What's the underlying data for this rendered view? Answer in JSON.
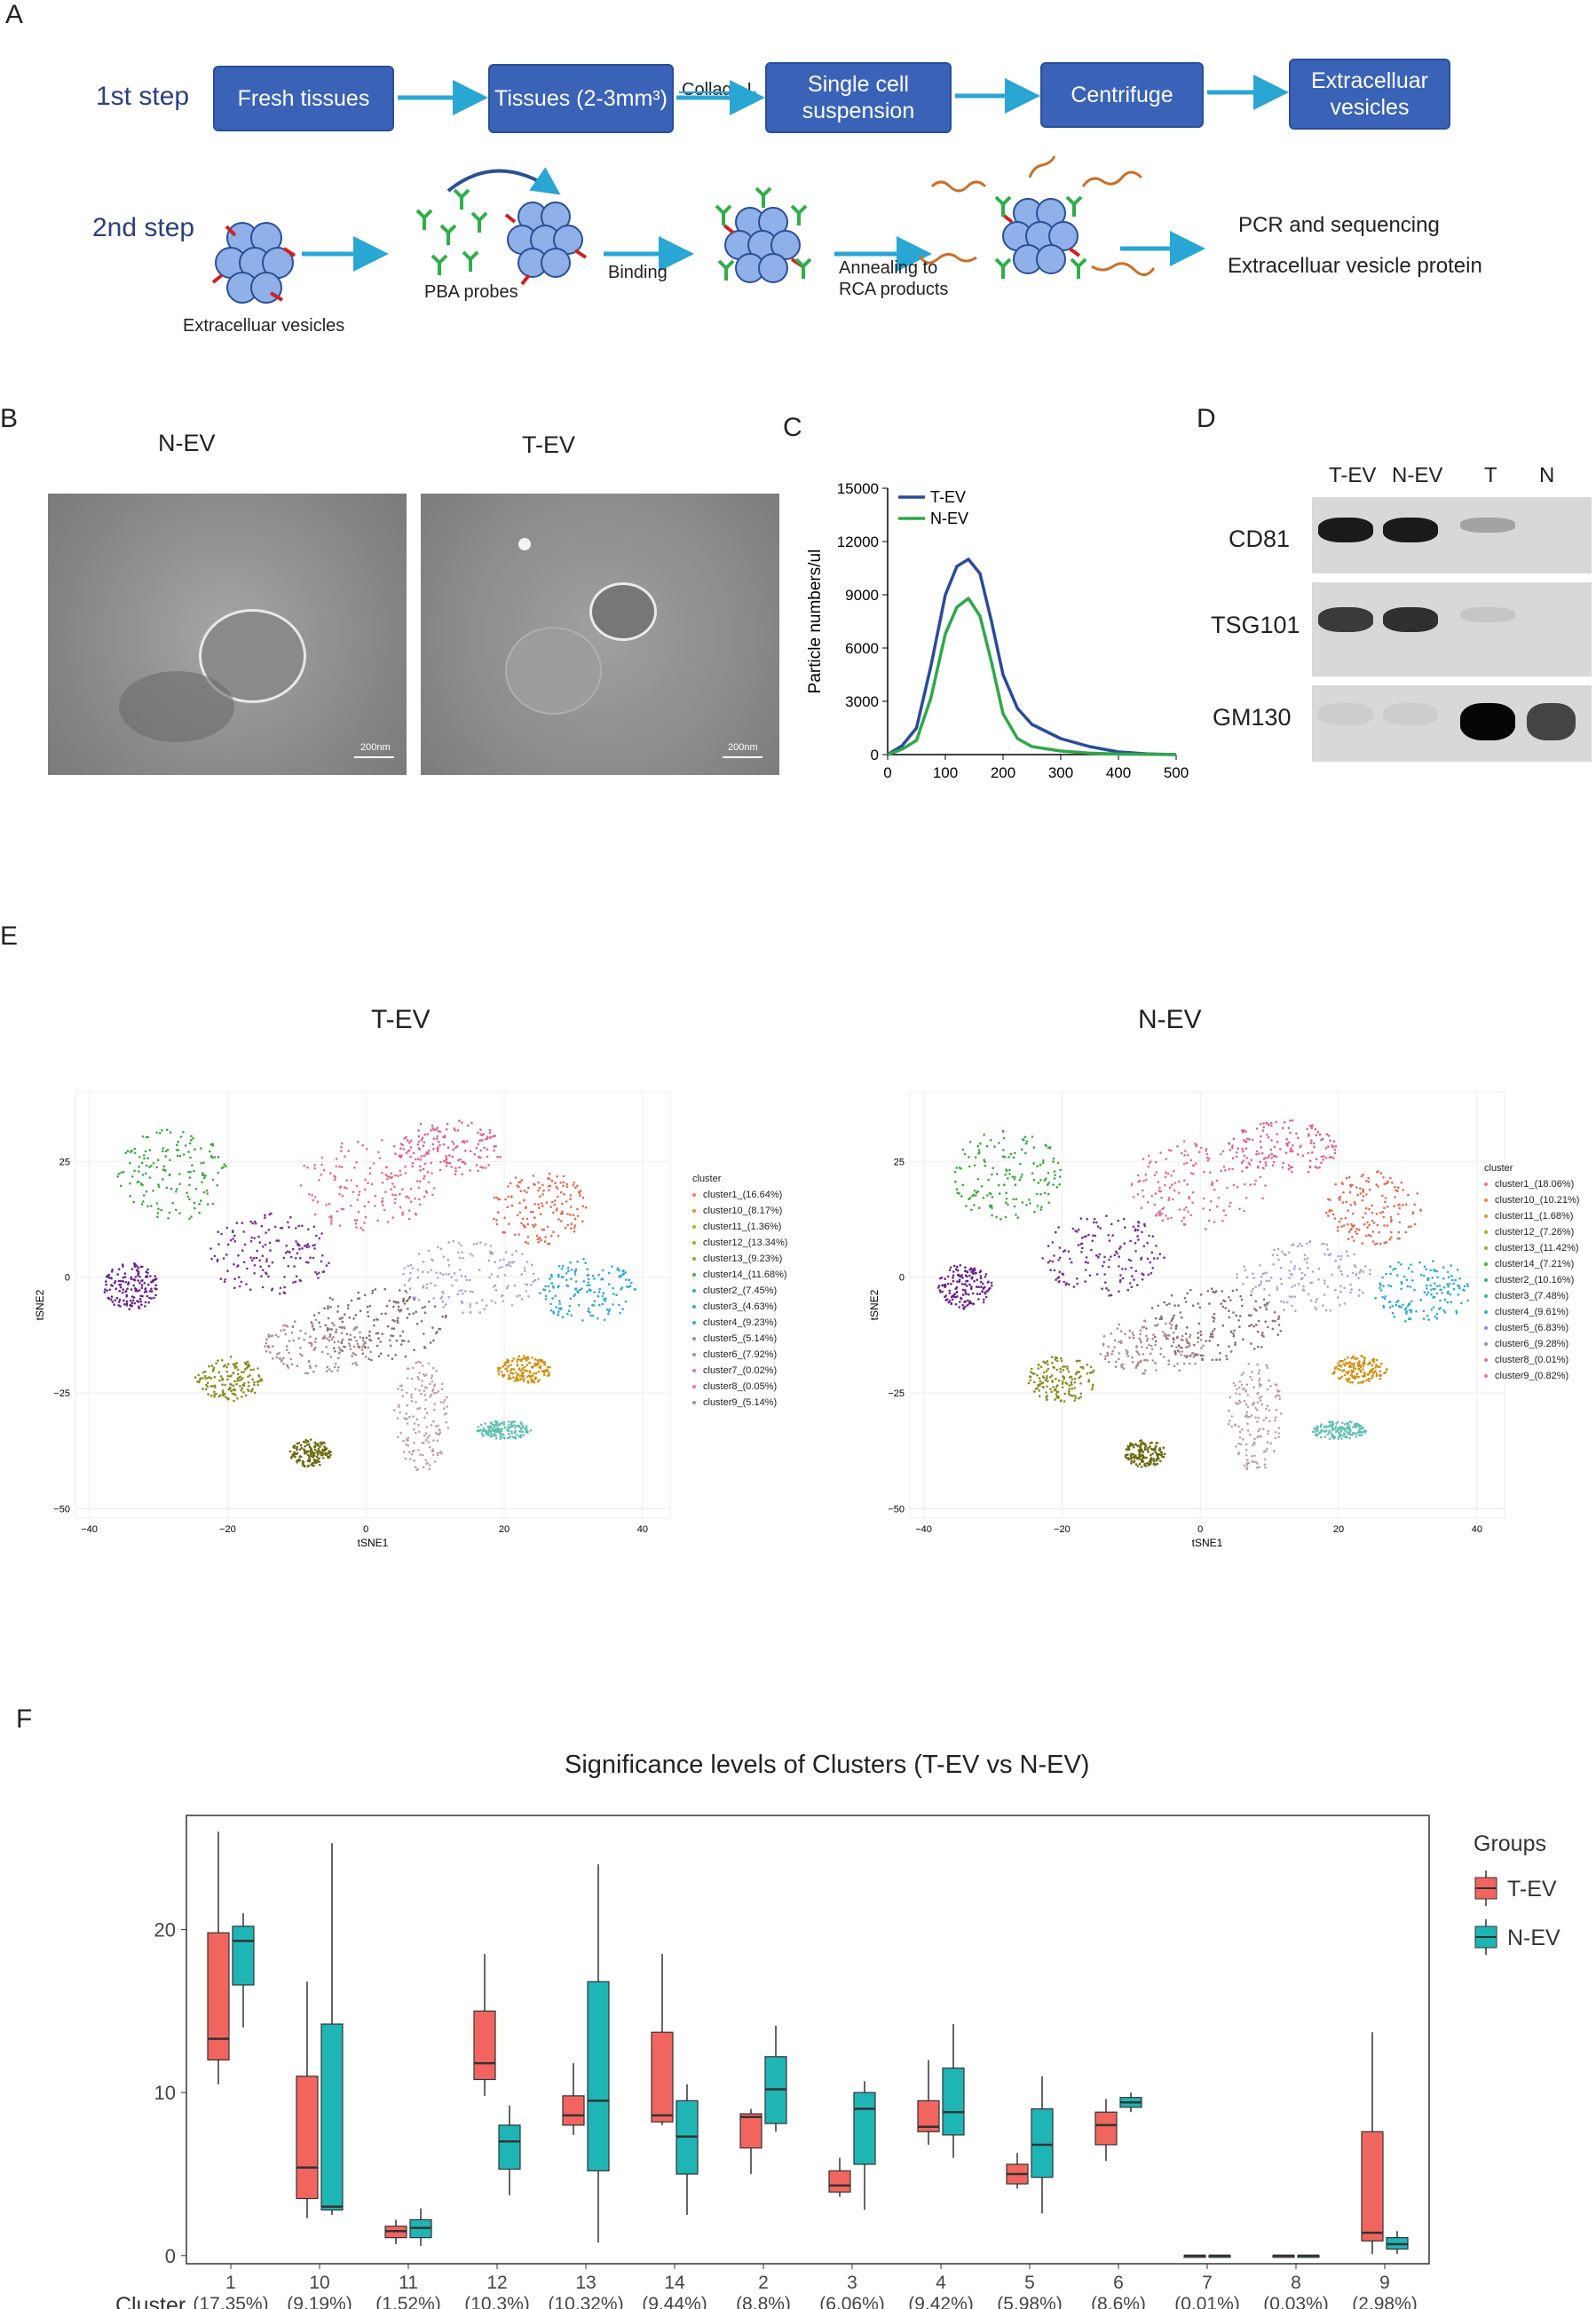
{
  "panels": {
    "a": "A",
    "b": "B",
    "c": "C",
    "d": "D",
    "e": "E",
    "f": "F"
  },
  "panelA": {
    "step1": "1st step",
    "step2": "2nd step",
    "boxes": [
      "Fresh tissues",
      "Tissues (2-3mm³)",
      "Single cell suspension",
      "Centrifuge",
      "Extracelluar vesicles"
    ],
    "arrow_collage": "Collage I",
    "ev_label": "Extracelluar vesicles",
    "pba_label": "PBA probes",
    "binding": "Binding",
    "annealing": "Annealing to RCA products",
    "out1": "PCR and sequencing",
    "out2": "Extracelluar vesicle protein"
  },
  "panelB": {
    "left_title": "N-EV",
    "right_title": "T-EV",
    "scale": "200nm"
  },
  "panelD": {
    "lanes": [
      "T-EV",
      "N-EV",
      "T",
      "N"
    ],
    "rows": [
      "CD81",
      "TSG101",
      "GM130"
    ],
    "intensity": [
      [
        0.9,
        0.9,
        0.25,
        0
      ],
      [
        0.75,
        0.8,
        0.08,
        0
      ],
      [
        0.05,
        0.05,
        1.0,
        0.7
      ]
    ]
  },
  "panelE": {
    "left_title": "T-EV",
    "right_title": "N-EV",
    "legend_title": "cluster",
    "left_legend": [
      "cluster1_(16.64%)",
      "cluster10_(8.17%)",
      "cluster11_(1.36%)",
      "cluster12_(13.34%)",
      "cluster13_(9.23%)",
      "cluster14_(11.68%)",
      "cluster2_(7.45%)",
      "cluster3_(4.63%)",
      "cluster4_(9.23%)",
      "cluster5_(5.14%)",
      "cluster6_(7.92%)",
      "cluster7_(0.02%)",
      "cluster8_(0.05%)",
      "cluster9_(5.14%)"
    ],
    "right_legend": [
      "cluster1_(18.06%)",
      "cluster10_(10.21%)",
      "cluster11_(1.68%)",
      "cluster12_(7.26%)",
      "cluster13_(11.42%)",
      "cluster14_(7.21%)",
      "cluster2_(10.16%)",
      "cluster3_(7.48%)",
      "cluster4_(9.61%)",
      "cluster5_(6.83%)",
      "cluster6_(9.28%)",
      "cluster8_(0.01%)",
      "cluster9_(0.82%)"
    ],
    "colors": [
      "#f0786a",
      "#e68a3c",
      "#d3a024",
      "#b9a42a",
      "#8fa830",
      "#4daa4a",
      "#3ab08a",
      "#33b6b0",
      "#3aa8d8",
      "#7b8fe0",
      "#ad7fe0",
      "#d76fd2",
      "#ec6fa8",
      "#b38b8b"
    ],
    "xlabel": "tSNE1",
    "ylabel": "tSNE2",
    "xticks": [
      "−40",
      "−20",
      "0",
      "20",
      "40"
    ],
    "yticks": [
      "25",
      "0",
      "−25",
      "−50"
    ]
  },
  "chart_data": [
    {
      "type": "line",
      "panel": "C",
      "xlabel": "",
      "ylabel": "Particle numbers/ul",
      "xlim": [
        0,
        500
      ],
      "ylim": [
        0,
        15000
      ],
      "xticks": [
        0,
        100,
        200,
        300,
        400,
        500
      ],
      "yticks": [
        0,
        3000,
        6000,
        9000,
        12000,
        15000
      ],
      "legend_position": "top-left",
      "series": [
        {
          "name": "T-EV",
          "color": "#2a4b9b",
          "x": [
            0,
            25,
            50,
            75,
            100,
            120,
            140,
            160,
            180,
            200,
            225,
            250,
            300,
            350,
            400,
            450,
            500
          ],
          "y": [
            0,
            500,
            1500,
            5000,
            9000,
            10600,
            11000,
            10200,
            7500,
            4500,
            2600,
            1700,
            900,
            450,
            150,
            40,
            0
          ]
        },
        {
          "name": "N-EV",
          "color": "#2fa84a",
          "x": [
            0,
            25,
            50,
            75,
            100,
            120,
            140,
            160,
            180,
            200,
            225,
            250,
            300,
            350,
            400,
            450,
            500
          ],
          "y": [
            0,
            300,
            800,
            3200,
            6800,
            8300,
            8800,
            7800,
            5200,
            2300,
            900,
            450,
            200,
            80,
            30,
            10,
            0
          ]
        }
      ]
    },
    {
      "type": "box",
      "panel": "F",
      "title": "Significance levels of Clusters (T-EV vs N-EV)",
      "xlabel": "Cluster",
      "legend_title": "Groups",
      "legend_position": "right",
      "ylim": [
        -0.5,
        27
      ],
      "yticks": [
        0,
        10,
        20
      ],
      "categories": [
        "1",
        "10",
        "11",
        "12",
        "13",
        "14",
        "2",
        "3",
        "4",
        "5",
        "6",
        "7",
        "8",
        "9"
      ],
      "category_pct": [
        "(17.35%)",
        "(9.19%)",
        "(1.52%)",
        "(10.3%)",
        "(10.32%)",
        "(9.44%)",
        "(8.8%)",
        "(6.06%)",
        "(9.42%)",
        "(5.98%)",
        "(8.6%)",
        "(0.01%)",
        "(0.03%)",
        "(2.98%)"
      ],
      "series": [
        {
          "name": "T-EV",
          "color": "#f0665f",
          "stats": [
            [
              10.5,
              12,
              13.3,
              19.8,
              26
            ],
            [
              2.3,
              3.5,
              5.4,
              11,
              16.8
            ],
            [
              0.7,
              1.1,
              1.5,
              1.8,
              2.2
            ],
            [
              9.8,
              10.8,
              11.8,
              15,
              18.5
            ],
            [
              7.4,
              8,
              8.6,
              9.8,
              11.8
            ],
            [
              8,
              8.2,
              8.6,
              13.7,
              18.5
            ],
            [
              5,
              6.6,
              8.5,
              8.7,
              9
            ],
            [
              3.6,
              3.9,
              4.3,
              5.2,
              6
            ],
            [
              6.8,
              7.6,
              7.9,
              9.5,
              12
            ],
            [
              4.1,
              4.4,
              5,
              5.6,
              6.3
            ],
            [
              5.8,
              6.8,
              8,
              8.8,
              9.6
            ],
            [
              0,
              0,
              0,
              0,
              0
            ],
            [
              0,
              0,
              0,
              0,
              0
            ],
            [
              0.1,
              0.9,
              1.4,
              7.6,
              13.7
            ]
          ]
        },
        {
          "name": "N-EV",
          "color": "#1fb5b5",
          "stats": [
            [
              14,
              16.6,
              19.3,
              20.2,
              21
            ],
            [
              2.5,
              2.8,
              3,
              14.2,
              25.3
            ],
            [
              0.6,
              1.1,
              1.7,
              2.2,
              2.9
            ],
            [
              3.7,
              5.3,
              7,
              8,
              9.2
            ],
            [
              0.8,
              5.2,
              9.5,
              16.8,
              24
            ],
            [
              2.5,
              5,
              7.3,
              9.5,
              10.5
            ],
            [
              7.6,
              8.1,
              10.2,
              12.2,
              14.1
            ],
            [
              2.8,
              5.6,
              9,
              10,
              10.7
            ],
            [
              6,
              7.4,
              8.8,
              11.5,
              14.2
            ],
            [
              2.6,
              4.8,
              6.8,
              9,
              11
            ],
            [
              8.8,
              9.1,
              9.4,
              9.7,
              10
            ],
            [
              0,
              0,
              0,
              0,
              0
            ],
            [
              0,
              0,
              0,
              0,
              0
            ],
            [
              0.1,
              0.4,
              0.7,
              1.1,
              1.5
            ]
          ]
        }
      ]
    }
  ]
}
